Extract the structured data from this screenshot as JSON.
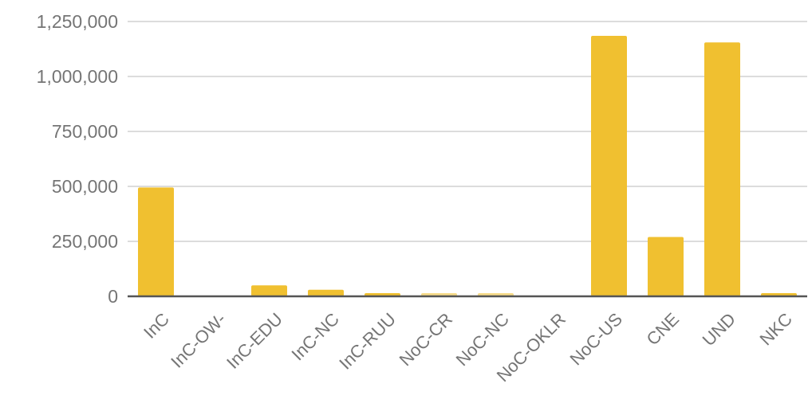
{
  "chart_data": {
    "type": "bar",
    "title": "",
    "xlabel": "",
    "ylabel": "",
    "categories": [
      "InC",
      "InC-OW-",
      "InC-EDU",
      "InC-NC",
      "InC-RUU",
      "NoC-CR",
      "NoC-NC",
      "NoC-OKLR",
      "NoC-US",
      "CNE",
      "UND",
      "NKC"
    ],
    "values": [
      495000,
      0,
      50000,
      30000,
      12000,
      5000,
      5000,
      0,
      1185000,
      270000,
      1155000,
      12000
    ],
    "ylim": [
      0,
      1250000
    ],
    "yticks": [
      0,
      250000,
      500000,
      750000,
      1000000,
      1250000
    ],
    "ytick_labels": [
      "0",
      "250,000",
      "500,000",
      "750,000",
      "1,000,000",
      "1,250,000"
    ],
    "grid": true,
    "legend": "none",
    "colors": {
      "bar": "#f0c030",
      "grid": "#dcdcdc",
      "axis": "#555555",
      "text": "#757575"
    }
  }
}
